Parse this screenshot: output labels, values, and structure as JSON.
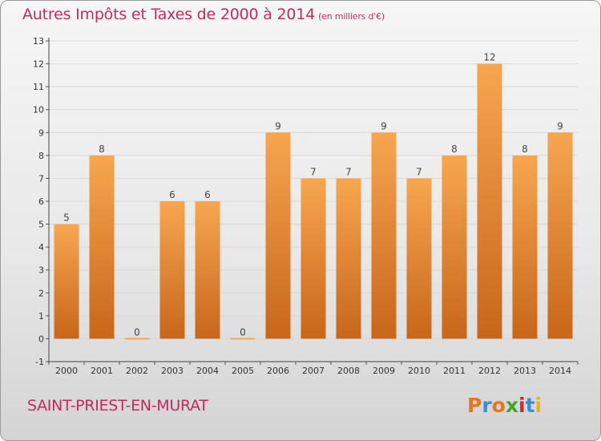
{
  "header": {
    "title": "Autres Impôts et Taxes de 2000 à 2014",
    "subtitle": "(en milliers d'€)"
  },
  "footer": {
    "commune": "SAINT-PRIEST-EN-MURAT",
    "logo": "Proxiti"
  },
  "colors": {
    "title": "#c42a5c",
    "bar_light": "#f7a650",
    "bar_dark": "#c8661a",
    "logo_letters": [
      "#e8741c",
      "#3b8fd1",
      "#e8741c",
      "#4aa02c",
      "#d7262e",
      "#3b8fd1",
      "#e8b31c"
    ]
  },
  "chart_data": {
    "type": "bar",
    "categories": [
      "2000",
      "2001",
      "2002",
      "2003",
      "2004",
      "2005",
      "2006",
      "2007",
      "2008",
      "2009",
      "2010",
      "2011",
      "2012",
      "2013",
      "2014"
    ],
    "values": [
      5,
      8,
      0,
      6,
      6,
      0,
      9,
      7,
      7,
      9,
      7,
      8,
      12,
      8,
      9
    ],
    "data_labels": [
      "5",
      "8",
      "0",
      "6",
      "6",
      "0",
      "9",
      "7",
      "7",
      "9",
      "7",
      "8",
      "12",
      "8",
      "9"
    ],
    "yticks": [
      -1,
      0,
      1,
      2,
      3,
      4,
      5,
      6,
      7,
      8,
      9,
      10,
      11,
      12,
      13
    ],
    "ylim": [
      -1,
      13
    ],
    "grid": "horizontal",
    "xlabel": "",
    "ylabel": ""
  }
}
